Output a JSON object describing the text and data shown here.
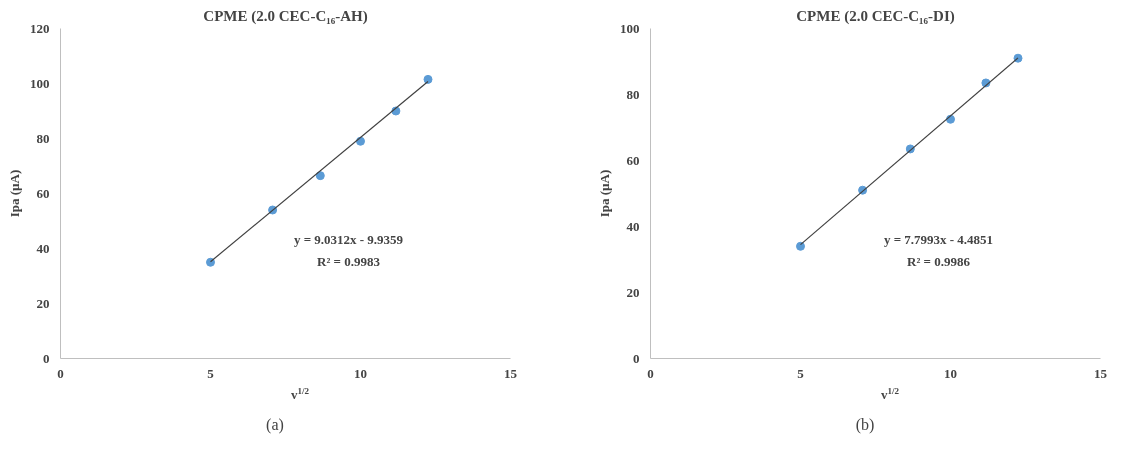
{
  "chart_data": [
    {
      "type": "scatter",
      "title": "CPME (2.0 CEC-C₁₆-AH)",
      "xlabel": "v$^{1/2}$",
      "ylabel": "Ipa (µA)",
      "series": [
        {
          "color": "#5b9bd5",
          "marker": "circle",
          "x": [
            5,
            7.07,
            8.66,
            10,
            11.18,
            12.25
          ],
          "values": [
            35,
            54,
            66.5,
            79,
            90,
            101.5
          ]
        },
        {
          "type": "line",
          "color": "#404040",
          "x": [
            5,
            12.25
          ],
          "values": [
            35.2,
            100.7
          ]
        }
      ],
      "xlim": [
        0,
        15
      ],
      "xticks": [
        0,
        5,
        10,
        15
      ],
      "ylim": [
        0,
        120
      ],
      "yticks": [
        0,
        20,
        40,
        60,
        80,
        100,
        120
      ],
      "grid": false,
      "line_style": "solid",
      "annotations": [
        "y = 9.0312x - 9.9359",
        "R² = 0.9983",
        "(a)"
      ]
    },
    {
      "type": "scatter",
      "title": "CPME (2.0 CEC-C₁₆-DI)",
      "xlabel": "v$^{1/2}$",
      "ylabel": "Ipa (µA)",
      "series": [
        {
          "color": "#5b9bd5",
          "marker": "circle",
          "x": [
            5,
            7.07,
            8.66,
            10,
            11.18,
            12.25
          ],
          "values": [
            34,
            51,
            63.5,
            72.5,
            83.5,
            91
          ]
        },
        {
          "type": "line",
          "color": "#404040",
          "x": [
            5,
            12.25
          ],
          "values": [
            34.5,
            91.1
          ]
        }
      ],
      "xlim": [
        0,
        15
      ],
      "xticks": [
        0,
        5,
        10,
        15
      ],
      "ylim": [
        0,
        100
      ],
      "yticks": [
        0,
        20,
        40,
        60,
        80,
        100
      ],
      "grid": false,
      "line_style": "solid",
      "annotations": [
        "y = 7.7993x - 4.4851",
        "R² = 0.9986",
        "(b)"
      ]
    }
  ]
}
